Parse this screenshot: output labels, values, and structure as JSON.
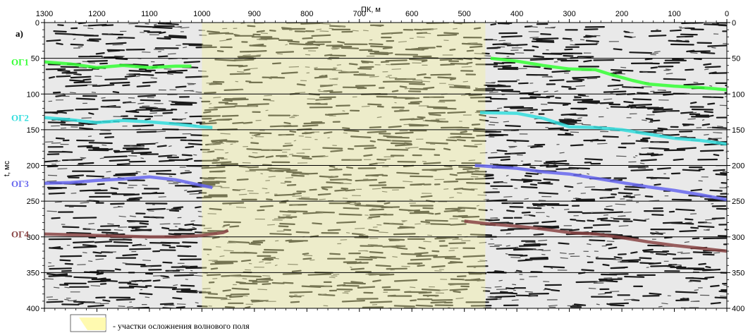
{
  "chart_data": {
    "type": "seismic-section",
    "panel_label": "a)",
    "xlabel": "ПК, м",
    "ylabel": "t, мс",
    "xlim": [
      1300,
      0
    ],
    "ylim": [
      0,
      400
    ],
    "x_ticks": [
      "1300",
      "1200",
      "1100",
      "1000",
      "900",
      "800",
      "700",
      "600",
      "500",
      "400",
      "300",
      "200",
      "100",
      "0"
    ],
    "y_ticks": [
      "0",
      "50",
      "100",
      "150",
      "200",
      "250",
      "300",
      "350",
      "400"
    ],
    "grid": "horizontal every 50 ms",
    "complication_zone": {
      "x_start": 1000,
      "x_end": 460
    },
    "horizons": [
      {
        "name": "ОГ1",
        "color": "#33ff33",
        "segments": [
          [
            [
              1300,
              55
            ],
            [
              1250,
              58
            ],
            [
              1200,
              63
            ],
            [
              1150,
              60
            ],
            [
              1100,
              63
            ],
            [
              1050,
              61
            ],
            [
              1020,
              61
            ]
          ],
          [
            [
              450,
              50
            ],
            [
              400,
              54
            ],
            [
              350,
              60
            ],
            [
              300,
              65
            ],
            [
              250,
              66
            ],
            [
              220,
              73
            ],
            [
              180,
              81
            ],
            [
              150,
              86
            ],
            [
              100,
              89
            ],
            [
              50,
              91
            ],
            [
              0,
              94
            ]
          ]
        ]
      },
      {
        "name": "ОГ2",
        "color": "#33dddd",
        "segments": [
          [
            [
              1300,
              133
            ],
            [
              1250,
              136
            ],
            [
              1200,
              140
            ],
            [
              1150,
              137
            ],
            [
              1100,
              139
            ],
            [
              1050,
              142
            ],
            [
              1000,
              146
            ],
            [
              980,
              147
            ]
          ],
          [
            [
              470,
              126
            ],
            [
              400,
              127
            ],
            [
              350,
              134
            ],
            [
              300,
              146
            ],
            [
              250,
              147
            ],
            [
              200,
              150
            ],
            [
              150,
              156
            ],
            [
              100,
              162
            ],
            [
              50,
              165
            ],
            [
              0,
              170
            ]
          ]
        ]
      },
      {
        "name": "ОГ3",
        "color": "#6666ee",
        "segments": [
          [
            [
              1300,
              225
            ],
            [
              1250,
              224
            ],
            [
              1200,
              221
            ],
            [
              1150,
              219
            ],
            [
              1100,
              216
            ],
            [
              1050,
              220
            ],
            [
              1000,
              228
            ],
            [
              980,
              231
            ]
          ],
          [
            [
              480,
              200
            ],
            [
              400,
              204
            ],
            [
              350,
              209
            ],
            [
              300,
              212
            ],
            [
              250,
              218
            ],
            [
              200,
              224
            ],
            [
              150,
              230
            ],
            [
              100,
              235
            ],
            [
              50,
              241
            ],
            [
              0,
              248
            ]
          ]
        ]
      },
      {
        "name": "ОГ4",
        "color": "#884444",
        "segments": [
          [
            [
              1300,
              296
            ],
            [
              1250,
              297
            ],
            [
              1200,
              298
            ],
            [
              1150,
              299
            ],
            [
              1100,
              300
            ],
            [
              1050,
              300
            ],
            [
              1000,
              298
            ],
            [
              960,
              294
            ],
            [
              950,
              291
            ]
          ],
          [
            [
              500,
              278
            ],
            [
              450,
              282
            ],
            [
              400,
              285
            ],
            [
              350,
              289
            ],
            [
              300,
              294
            ],
            [
              250,
              296
            ],
            [
              200,
              301
            ],
            [
              150,
              307
            ],
            [
              100,
              312
            ],
            [
              50,
              316
            ],
            [
              0,
              320
            ]
          ]
        ]
      }
    ],
    "legend": [
      {
        "label": "- участки осложнения волнового поля",
        "color": "#fffab0"
      }
    ]
  }
}
